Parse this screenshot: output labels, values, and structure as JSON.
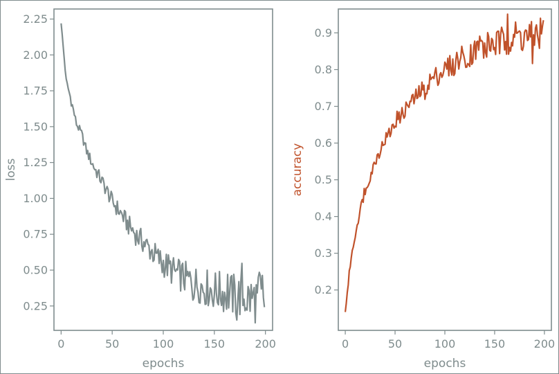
{
  "theme": {
    "axis_color": "#7f8c8d",
    "loss_color": "#7f8c8d",
    "accuracy_color": "#c0522b"
  },
  "chart_data": [
    {
      "type": "line",
      "title": "",
      "xlabel": "epochs",
      "ylabel": "loss",
      "xlim": [
        -7,
        207
      ],
      "ylim": [
        0.08,
        2.32
      ],
      "xticks": [
        0,
        50,
        100,
        150,
        200
      ],
      "yticks": [
        0.25,
        0.5,
        0.75,
        1.0,
        1.25,
        1.5,
        1.75,
        2.0,
        2.25
      ],
      "ytick_labels": [
        "0.25",
        "0.50",
        "0.75",
        "1.00",
        "1.25",
        "1.50",
        "1.75",
        "2.00",
        "2.25"
      ],
      "grid": false,
      "series": [
        {
          "color": "#7f8c8d",
          "x": [
            0,
            5,
            10,
            15,
            20,
            25,
            30,
            35,
            40,
            45,
            50,
            55,
            60,
            65,
            70,
            75,
            80,
            85,
            90,
            95,
            100,
            105,
            110,
            115,
            120,
            125,
            130,
            135,
            140,
            145,
            150,
            155,
            160,
            165,
            170,
            175,
            180,
            185,
            190,
            195,
            199
          ],
          "values": [
            2.22,
            1.82,
            1.68,
            1.52,
            1.45,
            1.33,
            1.25,
            1.18,
            1.12,
            1.05,
            0.98,
            0.93,
            0.88,
            0.82,
            0.78,
            0.73,
            0.7,
            0.66,
            0.62,
            0.58,
            0.55,
            0.52,
            0.49,
            0.47,
            0.45,
            0.43,
            0.41,
            0.4,
            0.38,
            0.37,
            0.36,
            0.35,
            0.34,
            0.33,
            0.32,
            0.32,
            0.31,
            0.3,
            0.3,
            0.29,
            0.28
          ]
        }
      ]
    },
    {
      "type": "line",
      "title": "",
      "xlabel": "epochs",
      "ylabel": "accuracy",
      "xlim": [
        -7,
        207
      ],
      "ylim": [
        0.09,
        0.965
      ],
      "xticks": [
        0,
        50,
        100,
        150,
        200
      ],
      "yticks": [
        0.2,
        0.3,
        0.4,
        0.5,
        0.6,
        0.7,
        0.8,
        0.9
      ],
      "ytick_labels": [
        "0.2",
        "0.3",
        "0.4",
        "0.5",
        "0.6",
        "0.7",
        "0.8",
        "0.9"
      ],
      "grid": false,
      "series": [
        {
          "color": "#c0522b",
          "x": [
            0,
            5,
            10,
            15,
            20,
            25,
            30,
            35,
            40,
            45,
            50,
            55,
            60,
            65,
            70,
            75,
            80,
            85,
            90,
            95,
            100,
            105,
            110,
            115,
            120,
            125,
            130,
            135,
            140,
            145,
            150,
            155,
            160,
            165,
            170,
            175,
            180,
            185,
            190,
            195,
            199
          ],
          "values": [
            0.14,
            0.27,
            0.35,
            0.42,
            0.47,
            0.51,
            0.55,
            0.58,
            0.61,
            0.63,
            0.65,
            0.67,
            0.69,
            0.71,
            0.72,
            0.74,
            0.75,
            0.77,
            0.78,
            0.79,
            0.8,
            0.81,
            0.82,
            0.83,
            0.84,
            0.84,
            0.85,
            0.86,
            0.86,
            0.87,
            0.87,
            0.87,
            0.88,
            0.88,
            0.89,
            0.89,
            0.89,
            0.89,
            0.9,
            0.9,
            0.9
          ]
        }
      ]
    }
  ]
}
